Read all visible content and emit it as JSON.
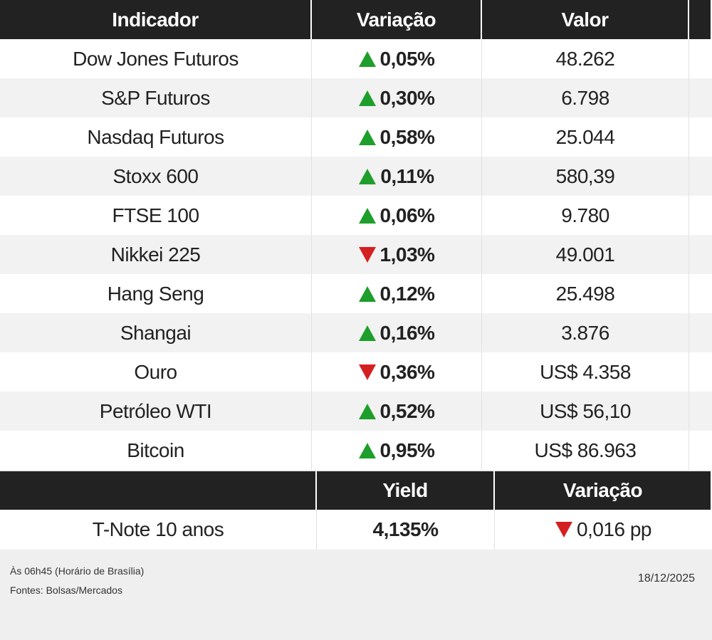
{
  "table": {
    "headers": [
      "Indicador",
      "Variação",
      "Valor"
    ],
    "rows": [
      {
        "name": "Dow Jones Futuros",
        "direction": "up",
        "change": "0,05%",
        "value": "48.262"
      },
      {
        "name": "S&P Futuros",
        "direction": "up",
        "change": "0,30%",
        "value": "6.798"
      },
      {
        "name": "Nasdaq Futuros",
        "direction": "up",
        "change": "0,58%",
        "value": "25.044"
      },
      {
        "name": "Stoxx 600",
        "direction": "up",
        "change": "0,11%",
        "value": "580,39"
      },
      {
        "name": "FTSE 100",
        "direction": "up",
        "change": "0,06%",
        "value": "9.780"
      },
      {
        "name": "Nikkei 225",
        "direction": "down",
        "change": "1,03%",
        "value": "49.001"
      },
      {
        "name": "Hang Seng",
        "direction": "up",
        "change": "0,12%",
        "value": "25.498"
      },
      {
        "name": "Shangai",
        "direction": "up",
        "change": "0,16%",
        "value": "3.876"
      },
      {
        "name": "Ouro",
        "direction": "down",
        "change": "0,36%",
        "value": "US$ 4.358"
      },
      {
        "name": "Petróleo WTI",
        "direction": "up",
        "change": "0,52%",
        "value": "US$ 56,10"
      },
      {
        "name": "Bitcoin",
        "direction": "up",
        "change": "0,95%",
        "value": "US$ 86.963"
      }
    ]
  },
  "bond_table": {
    "headers": [
      "Yield",
      "Variação"
    ],
    "rows": [
      {
        "name": "T-Note 10 anos",
        "yield": "4,135%",
        "direction": "down",
        "change": "0,016 pp"
      }
    ]
  },
  "footer": {
    "notes": [
      "Às 06h45 (Horário de Brasília)",
      "Fontes: Bolsas/Mercados"
    ],
    "date": "18/12/2025"
  }
}
